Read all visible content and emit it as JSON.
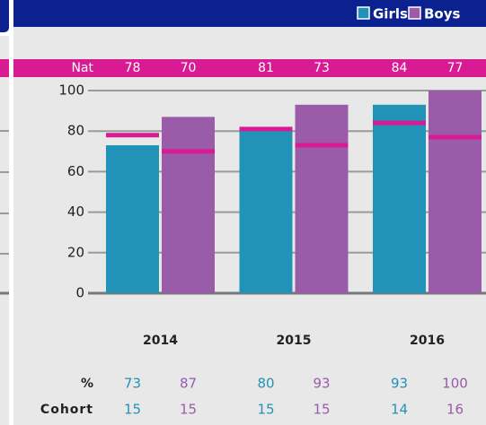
{
  "chart_data": {
    "type": "bar",
    "categories": [
      "2014",
      "2015",
      "2016"
    ],
    "series": [
      {
        "name": "Girls",
        "color": "#2193b8",
        "values": [
          73,
          80,
          93
        ],
        "national": [
          78,
          81,
          84
        ],
        "cohort": [
          15,
          15,
          14
        ]
      },
      {
        "name": "Boys",
        "color": "#9a5ba8",
        "values": [
          87,
          93,
          100
        ],
        "national": [
          70,
          73,
          77
        ],
        "cohort": [
          15,
          15,
          16
        ]
      }
    ],
    "national_label": "Nat",
    "percent_label": "%",
    "cohort_label": "Cohort",
    "national_color": "#d81b93",
    "ylim": [
      0,
      100
    ],
    "yticks": [
      0,
      20,
      40,
      60,
      80,
      100
    ],
    "grid": true,
    "legend": "top-right"
  }
}
